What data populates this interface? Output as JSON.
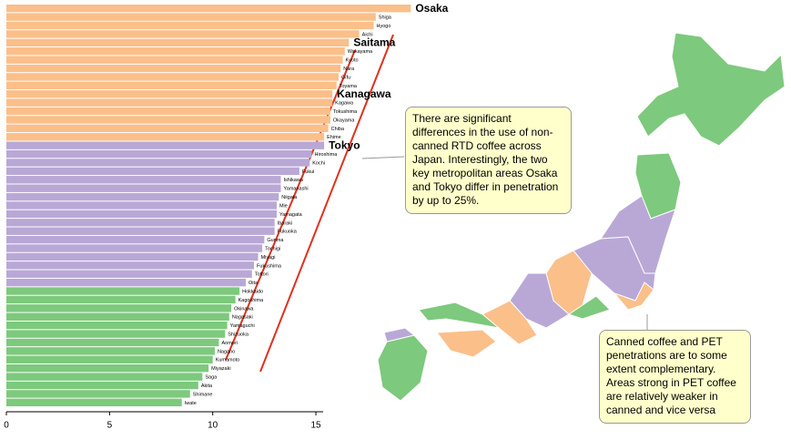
{
  "chart_data": {
    "type": "bar",
    "categories": [
      "Osaka",
      "Shiga",
      "Hyogo",
      "Aichi",
      "Saitama",
      "Wakayama",
      "Kyoto",
      "Nara",
      "Gifu",
      "Toyama",
      "Kanagawa",
      "Kagawa",
      "Tokushima",
      "Okayama",
      "Chiba",
      "Ehime",
      "Tokyo",
      "Hiroshima",
      "Kochi",
      "Fukui",
      "Ishikawa",
      "Yamanashi",
      "Niigata",
      "Mie",
      "Yamagata",
      "Ibaraki",
      "Fukuoka",
      "Gunma",
      "Tochigi",
      "Miyagi",
      "Fukushima",
      "Tottori",
      "Oita",
      "Hokkaido",
      "Kagoshima",
      "Okinawa",
      "Nagasaki",
      "Yamaguchi",
      "Shizuoka",
      "Aomori",
      "Nagano",
      "Kumamoto",
      "Miyazaki",
      "Saga",
      "Akita",
      "Shimane",
      "Iwate"
    ],
    "values": [
      19.6,
      17.9,
      17.8,
      17.1,
      16.6,
      16.4,
      16.3,
      16.2,
      16.1,
      16.0,
      15.8,
      15.8,
      15.7,
      15.7,
      15.6,
      15.4,
      15.4,
      14.8,
      14.7,
      14.2,
      13.3,
      13.3,
      13.2,
      13.1,
      13.1,
      13.0,
      13.0,
      12.5,
      12.4,
      12.2,
      12.0,
      11.9,
      11.6,
      11.3,
      11.1,
      10.9,
      10.8,
      10.7,
      10.6,
      10.3,
      10.1,
      10.0,
      9.8,
      9.5,
      9.3,
      8.9,
      8.5
    ],
    "bar_colors": [
      "#fbbf8a",
      "#fbbf8a",
      "#fbbf8a",
      "#fbbf8a",
      "#fbbf8a",
      "#fbbf8a",
      "#fbbf8a",
      "#fbbf8a",
      "#fbbf8a",
      "#fbbf8a",
      "#fbbf8a",
      "#fbbf8a",
      "#fbbf8a",
      "#fbbf8a",
      "#fbbf8a",
      "#fbbf8a",
      "#b9a8d6",
      "#b9a8d6",
      "#b9a8d6",
      "#b9a8d6",
      "#b9a8d6",
      "#b9a8d6",
      "#b9a8d6",
      "#b9a8d6",
      "#b9a8d6",
      "#b9a8d6",
      "#b9a8d6",
      "#b9a8d6",
      "#b9a8d6",
      "#b9a8d6",
      "#b9a8d6",
      "#b9a8d6",
      "#b9a8d6",
      "#7dc97d",
      "#7dc97d",
      "#7dc97d",
      "#7dc97d",
      "#7dc97d",
      "#7dc97d",
      "#7dc97d",
      "#7dc97d",
      "#7dc97d",
      "#7dc97d",
      "#7dc97d",
      "#7dc97d",
      "#7dc97d",
      "#7dc97d"
    ],
    "highlight": [
      0,
      4,
      10,
      16
    ],
    "xlim": [
      0,
      20
    ],
    "xticks": [
      0,
      5,
      10,
      15
    ],
    "annotations": [
      "There are significant differences in the use of non-canned RTD coffee across Japan. Interestingly, the two key metropolitan areas Osaka and Tokyo differ in penetration by up to 25%.",
      "Canned coffee and PET penetrations are to some extent complementary. Areas strong in PET coffee are relatively weaker in canned and vice versa"
    ]
  }
}
